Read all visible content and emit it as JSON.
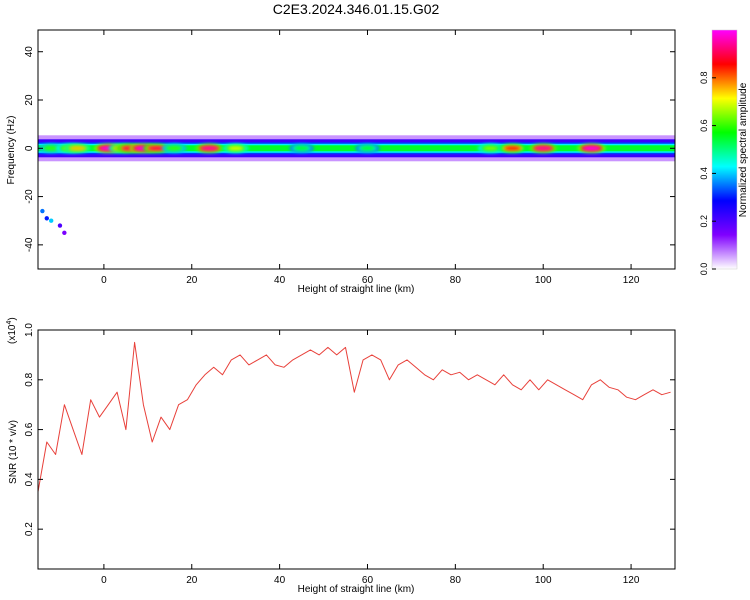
{
  "title": "C2E3.2024.346.01.15.G02",
  "chart_data": [
    {
      "type": "heatmap",
      "xlabel": "Height of straight line (km)",
      "ylabel": "Frequency (Hz)",
      "xlim": [
        -15,
        130
      ],
      "ylim": [
        -50,
        49
      ],
      "xticks": [
        0,
        20,
        40,
        60,
        80,
        100,
        120
      ],
      "yticks": [
        -40,
        -20,
        0,
        20,
        40
      ],
      "colorbar": {
        "label": "Normalized spectral amplitude",
        "range": [
          0,
          1
        ],
        "ticks": [
          "0.0",
          "0.2",
          "0.4",
          "0.6",
          "0.8"
        ],
        "tick_values": [
          0.0,
          0.2,
          0.4,
          0.6,
          0.8
        ],
        "colors": [
          "#ffffff",
          "#8000ff",
          "#0000ff",
          "#00ffff",
          "#00ff00",
          "#ffff00",
          "#ff0000",
          "#ff00ff"
        ]
      },
      "band": {
        "center_hz": 0,
        "peaks": [
          {
            "x": 1,
            "v": 1.0
          },
          {
            "x": 4,
            "v": 0.75
          },
          {
            "x": 6,
            "v": 0.9
          },
          {
            "x": 9,
            "v": 1.0
          },
          {
            "x": 12,
            "v": 0.9
          },
          {
            "x": 16,
            "v": 0.6
          },
          {
            "x": 24,
            "v": 0.95
          },
          {
            "x": 30,
            "v": 0.7
          },
          {
            "x": 45,
            "v": 0.55
          },
          {
            "x": 60,
            "v": 0.55
          },
          {
            "x": 88,
            "v": 0.65
          },
          {
            "x": 93,
            "v": 0.85
          },
          {
            "x": 100,
            "v": 0.95
          },
          {
            "x": 111,
            "v": 1.0
          },
          {
            "x": -12,
            "v": 0.6
          },
          {
            "x": -8,
            "v": 0.65
          },
          {
            "x": -6,
            "v": 0.75
          }
        ],
        "scatter": [
          {
            "x": -14,
            "y": -26,
            "v": 0.35
          },
          {
            "x": -13,
            "y": -29,
            "v": 0.3
          },
          {
            "x": -12,
            "y": -30,
            "v": 0.4
          },
          {
            "x": -10,
            "y": -32,
            "v": 0.2
          },
          {
            "x": -9,
            "y": -35,
            "v": 0.15
          }
        ]
      }
    },
    {
      "type": "line",
      "xlabel": "Height of straight line (km)",
      "ylabel": "SNR (10 * v/v)",
      "y_scale_label": "(x10",
      "y_scale_exp": "4",
      "y_scale_close": ")",
      "xlim": [
        -15,
        130
      ],
      "ylim": [
        0.04,
        1.0
      ],
      "xticks": [
        0,
        20,
        40,
        60,
        80,
        100,
        120
      ],
      "yticks": [
        0.2,
        0.4,
        0.6,
        0.8,
        1.0
      ],
      "yticklabels": [
        "0.2",
        "0.4",
        "0.6",
        "0.8",
        "1.0"
      ],
      "color": "#e8403a",
      "series": [
        {
          "x": [
            -15,
            -13,
            -11,
            -9,
            -7,
            -5,
            -3,
            -1,
            1,
            3,
            5,
            7,
            9,
            11,
            13,
            15,
            17,
            19,
            21,
            23,
            25,
            27,
            29,
            31,
            33,
            35,
            37,
            39,
            41,
            43,
            45,
            47,
            49,
            51,
            53,
            55,
            57,
            59,
            61,
            63,
            65,
            67,
            69,
            71,
            73,
            75,
            77,
            79,
            81,
            83,
            85,
            87,
            89,
            91,
            93,
            95,
            97,
            99,
            101,
            103,
            105,
            107,
            109,
            111,
            113,
            115,
            117,
            119,
            121,
            123,
            125,
            127,
            129
          ],
          "values": [
            0.35,
            0.55,
            0.5,
            0.7,
            0.6,
            0.5,
            0.72,
            0.65,
            0.7,
            0.75,
            0.6,
            0.95,
            0.7,
            0.55,
            0.65,
            0.6,
            0.7,
            0.72,
            0.78,
            0.82,
            0.85,
            0.82,
            0.88,
            0.9,
            0.86,
            0.88,
            0.9,
            0.86,
            0.85,
            0.88,
            0.9,
            0.92,
            0.9,
            0.93,
            0.9,
            0.93,
            0.75,
            0.88,
            0.9,
            0.88,
            0.8,
            0.86,
            0.88,
            0.85,
            0.82,
            0.8,
            0.84,
            0.82,
            0.83,
            0.8,
            0.82,
            0.8,
            0.78,
            0.82,
            0.78,
            0.76,
            0.8,
            0.76,
            0.8,
            0.78,
            0.76,
            0.74,
            0.72,
            0.78,
            0.8,
            0.77,
            0.76,
            0.73,
            0.72,
            0.74,
            0.76,
            0.74,
            0.75
          ]
        }
      ]
    }
  ]
}
